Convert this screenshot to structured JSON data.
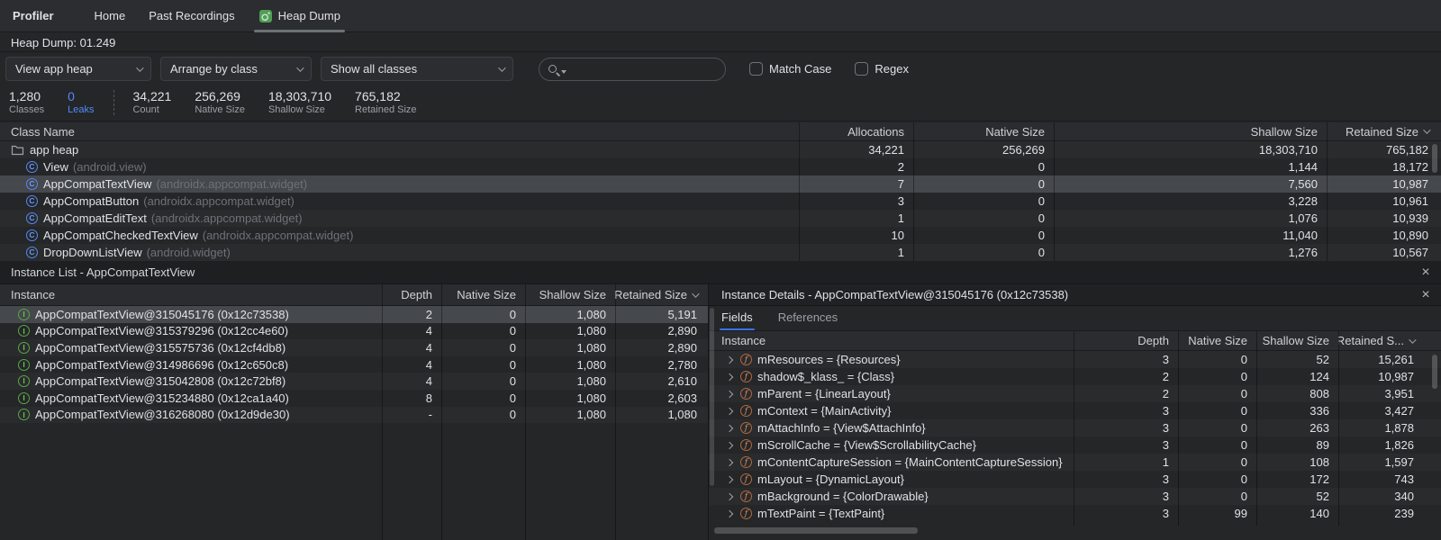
{
  "icons": {
    "close": "×"
  },
  "colors": {
    "accent_blue": "#548af7",
    "tab_underline_blue": "#3574f0",
    "class_icon_blue": "#548af7",
    "instance_icon_green": "#58a942",
    "field_icon_orange": "#b5683c",
    "heap_icon_green": "#4f9e58",
    "selected_row": "#45484d",
    "background": "#242628"
  },
  "tabbar": {
    "title": "Profiler",
    "tabs": [
      {
        "label": "Home",
        "active": false
      },
      {
        "label": "Past Recordings",
        "active": false
      },
      {
        "label": "Heap Dump",
        "active": true,
        "icon": "heap-dump-icon"
      }
    ]
  },
  "subtitle": "Heap Dump: 01.249",
  "toolbar": {
    "view_dropdown": "View app heap",
    "arrange_dropdown": "Arrange by class",
    "show_dropdown": "Show all classes",
    "search_placeholder": "",
    "search_value": "",
    "match_case_label": "Match Case",
    "regex_label": "Regex"
  },
  "stats": [
    {
      "value": "1,280",
      "label": "Classes",
      "highlight": false
    },
    {
      "value": "0",
      "label": "Leaks",
      "highlight": true
    },
    {
      "value": "34,221",
      "label": "Count",
      "highlight": false
    },
    {
      "value": "256,269",
      "label": "Native Size",
      "highlight": false
    },
    {
      "value": "18,303,710",
      "label": "Shallow Size",
      "highlight": false
    },
    {
      "value": "765,182",
      "label": "Retained Size",
      "highlight": false
    }
  ],
  "class_table": {
    "columns": [
      "Class Name",
      "Allocations",
      "Native Size",
      "Shallow Size",
      "Retained Size"
    ],
    "sort_column": "Retained Size",
    "sort_direction": "desc",
    "rows": [
      {
        "icon": "folder",
        "indent": 0,
        "name": "app heap",
        "package": "",
        "allocations": "34,221",
        "native": "256,269",
        "shallow": "18,303,710",
        "retained": "765,182",
        "selected": false
      },
      {
        "icon": "class",
        "indent": 1,
        "name": "View",
        "package": "(android.view)",
        "allocations": "2",
        "native": "0",
        "shallow": "1,144",
        "retained": "18,172",
        "selected": false
      },
      {
        "icon": "class",
        "indent": 1,
        "name": "AppCompatTextView",
        "package": "(androidx.appcompat.widget)",
        "allocations": "7",
        "native": "0",
        "shallow": "7,560",
        "retained": "10,987",
        "selected": true
      },
      {
        "icon": "class",
        "indent": 1,
        "name": "AppCompatButton",
        "package": "(androidx.appcompat.widget)",
        "allocations": "3",
        "native": "0",
        "shallow": "3,228",
        "retained": "10,961",
        "selected": false
      },
      {
        "icon": "class",
        "indent": 1,
        "name": "AppCompatEditText",
        "package": "(androidx.appcompat.widget)",
        "allocations": "1",
        "native": "0",
        "shallow": "1,076",
        "retained": "10,939",
        "selected": false
      },
      {
        "icon": "class",
        "indent": 1,
        "name": "AppCompatCheckedTextView",
        "package": "(androidx.appcompat.widget)",
        "allocations": "10",
        "native": "0",
        "shallow": "11,040",
        "retained": "10,890",
        "selected": false
      },
      {
        "icon": "class",
        "indent": 1,
        "name": "DropDownListView",
        "package": "(android.widget)",
        "allocations": "1",
        "native": "0",
        "shallow": "1,276",
        "retained": "10,567",
        "selected": false
      }
    ]
  },
  "instance_list": {
    "title": "Instance List - AppCompatTextView",
    "columns": [
      "Instance",
      "Depth",
      "Native Size",
      "Shallow Size",
      "Retained Size"
    ],
    "sort_column": "Retained Size",
    "sort_direction": "desc",
    "rows": [
      {
        "name": "AppCompatTextView@315045176 (0x12c73538)",
        "depth": "2",
        "native": "0",
        "shallow": "1,080",
        "retained": "5,191",
        "selected": true
      },
      {
        "name": "AppCompatTextView@315379296 (0x12cc4e60)",
        "depth": "4",
        "native": "0",
        "shallow": "1,080",
        "retained": "2,890",
        "selected": false
      },
      {
        "name": "AppCompatTextView@315575736 (0x12cf4db8)",
        "depth": "4",
        "native": "0",
        "shallow": "1,080",
        "retained": "2,890",
        "selected": false
      },
      {
        "name": "AppCompatTextView@314986696 (0x12c650c8)",
        "depth": "4",
        "native": "0",
        "shallow": "1,080",
        "retained": "2,780",
        "selected": false
      },
      {
        "name": "AppCompatTextView@315042808 (0x12c72bf8)",
        "depth": "4",
        "native": "0",
        "shallow": "1,080",
        "retained": "2,610",
        "selected": false
      },
      {
        "name": "AppCompatTextView@315234880 (0x12ca1a40)",
        "depth": "8",
        "native": "0",
        "shallow": "1,080",
        "retained": "2,603",
        "selected": false
      },
      {
        "name": "AppCompatTextView@316268080 (0x12d9de30)",
        "depth": "-",
        "native": "0",
        "shallow": "1,080",
        "retained": "1,080",
        "selected": false
      }
    ]
  },
  "instance_details": {
    "title": "Instance Details - AppCompatTextView@315045176 (0x12c73538)",
    "tabs": [
      "Fields",
      "References"
    ],
    "active_tab": "Fields",
    "columns": [
      "Instance",
      "Depth",
      "Native Size",
      "Shallow Size",
      "Retained S..."
    ],
    "sort_column": "Retained S...",
    "sort_direction": "desc",
    "rows": [
      {
        "name": "mResources = {Resources}",
        "depth": "3",
        "native": "0",
        "shallow": "52",
        "retained": "15,261"
      },
      {
        "name": "shadow$_klass_ = {Class}",
        "depth": "2",
        "native": "0",
        "shallow": "124",
        "retained": "10,987"
      },
      {
        "name": "mParent = {LinearLayout}",
        "depth": "2",
        "native": "0",
        "shallow": "808",
        "retained": "3,951"
      },
      {
        "name": "mContext = {MainActivity}",
        "depth": "3",
        "native": "0",
        "shallow": "336",
        "retained": "3,427"
      },
      {
        "name": "mAttachInfo = {View$AttachInfo}",
        "depth": "3",
        "native": "0",
        "shallow": "263",
        "retained": "1,878"
      },
      {
        "name": "mScrollCache = {View$ScrollabilityCache}",
        "depth": "3",
        "native": "0",
        "shallow": "89",
        "retained": "1,826"
      },
      {
        "name": "mContentCaptureSession = {MainContentCaptureSession}",
        "depth": "1",
        "native": "0",
        "shallow": "108",
        "retained": "1,597"
      },
      {
        "name": "mLayout = {DynamicLayout}",
        "depth": "3",
        "native": "0",
        "shallow": "172",
        "retained": "743"
      },
      {
        "name": "mBackground = {ColorDrawable}",
        "depth": "3",
        "native": "0",
        "shallow": "52",
        "retained": "340"
      },
      {
        "name": "mTextPaint = {TextPaint}",
        "depth": "3",
        "native": "99",
        "shallow": "140",
        "retained": "239"
      }
    ]
  }
}
